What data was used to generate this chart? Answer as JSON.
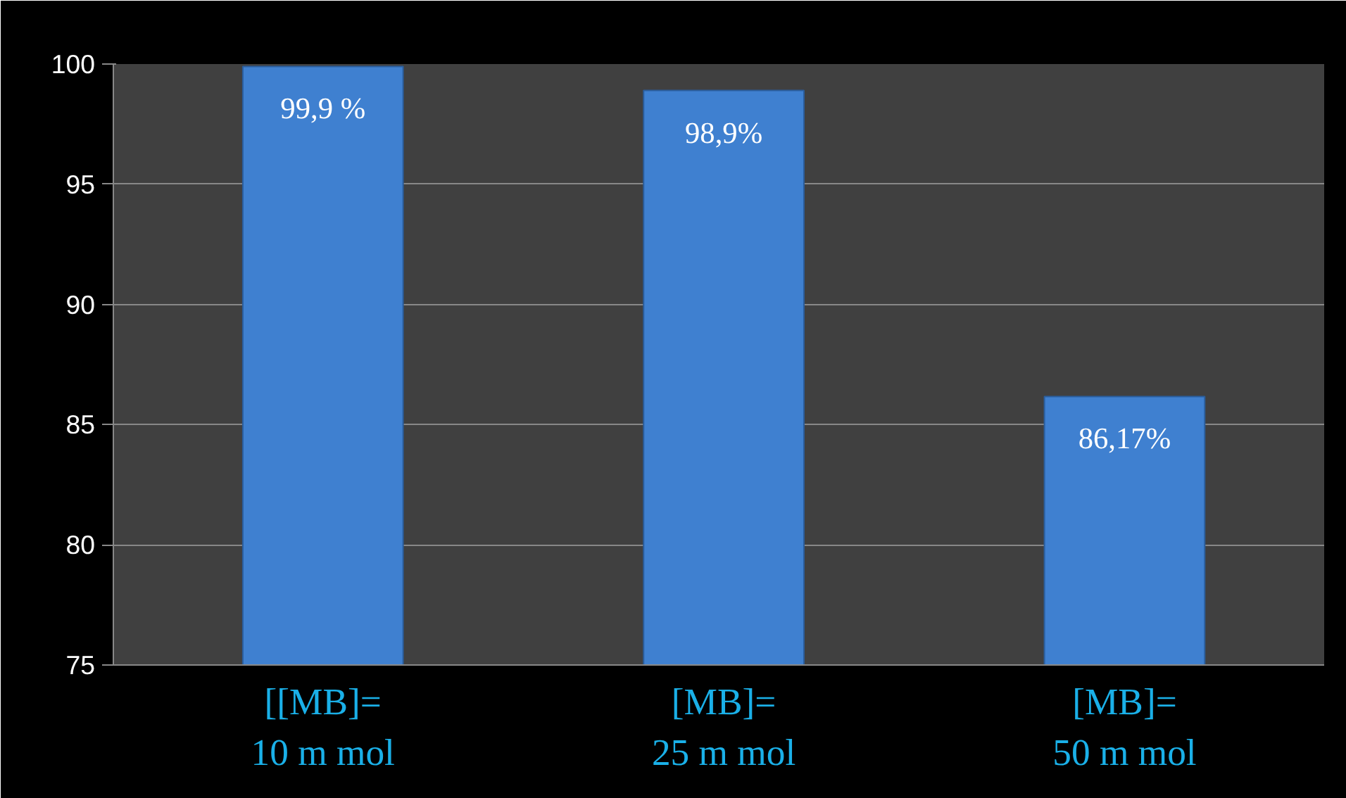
{
  "chart_data": {
    "type": "bar",
    "categories": [
      "[[MB]=\n10 m mol",
      "[MB]=\n25 m mol",
      "[MB]=\n50 m mol"
    ],
    "values": [
      99.9,
      98.9,
      86.17
    ],
    "value_labels": [
      "99,9 %",
      "98,9%",
      "86,17%"
    ],
    "color": "#3f80d0",
    "ylim": [
      75,
      100
    ],
    "yticks": [
      75,
      80,
      85,
      90,
      95,
      100
    ],
    "grid": "y"
  }
}
